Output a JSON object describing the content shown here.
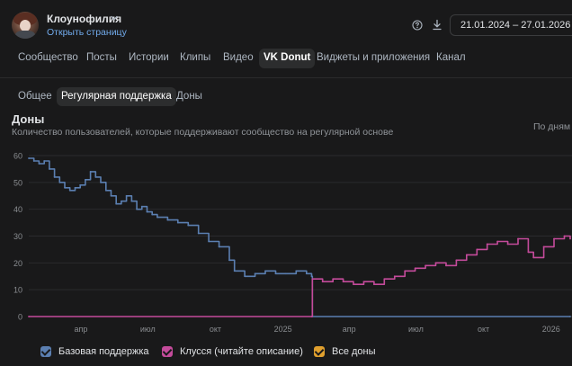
{
  "header": {
    "group_name": "Клоунофилия",
    "open_page_link": "Открыть страницу",
    "date_range": "21.01.2024 – 27.01.2026"
  },
  "tabs": [
    {
      "label": "Сообщество",
      "active": false
    },
    {
      "label": "Посты",
      "active": false
    },
    {
      "label": "Истории",
      "active": false
    },
    {
      "label": "Клипы",
      "active": false
    },
    {
      "label": "Видео",
      "active": false
    },
    {
      "label": "VK Donut",
      "active": true
    },
    {
      "label": "Виджеты и приложения",
      "active": false
    },
    {
      "label": "Канал",
      "active": false
    }
  ],
  "subtabs": [
    {
      "label": "Общее",
      "active": false
    },
    {
      "label": "Регулярная поддержка",
      "active": true
    },
    {
      "label": "Доны",
      "active": false
    }
  ],
  "chart_header": {
    "title": "Доны",
    "subtitle": "Количество пользователей, которые поддерживают сообщество на регулярной основе",
    "period": "По дням"
  },
  "colors": {
    "background": "#19191a",
    "series_base": "#5b7fb1",
    "series_klussa": "#c44b9b",
    "series_all": "#e0a02e",
    "link": "#71aaeb"
  },
  "chart_data": {
    "type": "line",
    "title": "Доны",
    "subtitle": "Количество пользователей, которые поддерживают сообщество на регулярной основе",
    "ylim": [
      0,
      60
    ],
    "y_ticks": [
      0,
      10,
      20,
      30,
      40,
      50,
      60
    ],
    "x_tick_labels": [
      "апр",
      "июл",
      "окт",
      "2025",
      "апр",
      "июл",
      "окт",
      "2026"
    ],
    "xlim": [
      "2024-01-21",
      "2026-01-27"
    ],
    "grid": true,
    "legend_position": "bottom",
    "series": [
      {
        "name": "Базовая поддержка",
        "color": "#5b7fb1",
        "points": [
          [
            "2024-01-21",
            59
          ],
          [
            "2024-01-28",
            58
          ],
          [
            "2024-02-04",
            57
          ],
          [
            "2024-02-11",
            58
          ],
          [
            "2024-02-18",
            55
          ],
          [
            "2024-02-25",
            52
          ],
          [
            "2024-03-03",
            50
          ],
          [
            "2024-03-10",
            48
          ],
          [
            "2024-03-17",
            47
          ],
          [
            "2024-03-24",
            48
          ],
          [
            "2024-03-31",
            49
          ],
          [
            "2024-04-07",
            51
          ],
          [
            "2024-04-14",
            54
          ],
          [
            "2024-04-21",
            52
          ],
          [
            "2024-04-28",
            50
          ],
          [
            "2024-05-05",
            47
          ],
          [
            "2024-05-12",
            45
          ],
          [
            "2024-05-19",
            42
          ],
          [
            "2024-05-26",
            43
          ],
          [
            "2024-06-02",
            45
          ],
          [
            "2024-06-09",
            43
          ],
          [
            "2024-06-16",
            40
          ],
          [
            "2024-06-23",
            41
          ],
          [
            "2024-06-30",
            39
          ],
          [
            "2024-07-07",
            38
          ],
          [
            "2024-07-14",
            37
          ],
          [
            "2024-07-28",
            36
          ],
          [
            "2024-08-11",
            35
          ],
          [
            "2024-08-25",
            34
          ],
          [
            "2024-09-08",
            31
          ],
          [
            "2024-09-22",
            28
          ],
          [
            "2024-10-06",
            26
          ],
          [
            "2024-10-20",
            21
          ],
          [
            "2024-10-27",
            17
          ],
          [
            "2024-11-10",
            15
          ],
          [
            "2024-11-24",
            16
          ],
          [
            "2024-12-08",
            17
          ],
          [
            "2024-12-22",
            16
          ],
          [
            "2025-01-05",
            16
          ],
          [
            "2025-01-19",
            17
          ],
          [
            "2025-02-02",
            16
          ],
          [
            "2025-02-09",
            15
          ],
          [
            "2025-02-10",
            0
          ],
          [
            "2026-01-27",
            0
          ]
        ]
      },
      {
        "name": "Клусся (читайте описание)",
        "color": "#c44b9b",
        "points": [
          [
            "2024-01-21",
            0
          ],
          [
            "2025-02-09",
            0
          ],
          [
            "2025-02-10",
            14
          ],
          [
            "2025-02-24",
            13
          ],
          [
            "2025-03-10",
            14
          ],
          [
            "2025-03-24",
            13
          ],
          [
            "2025-04-07",
            12
          ],
          [
            "2025-04-21",
            13
          ],
          [
            "2025-05-05",
            12
          ],
          [
            "2025-05-19",
            14
          ],
          [
            "2025-06-02",
            15
          ],
          [
            "2025-06-16",
            17
          ],
          [
            "2025-06-30",
            18
          ],
          [
            "2025-07-14",
            19
          ],
          [
            "2025-07-28",
            20
          ],
          [
            "2025-08-11",
            19
          ],
          [
            "2025-08-25",
            21
          ],
          [
            "2025-09-08",
            23
          ],
          [
            "2025-09-22",
            25
          ],
          [
            "2025-10-06",
            27
          ],
          [
            "2025-10-20",
            28
          ],
          [
            "2025-11-03",
            27
          ],
          [
            "2025-11-17",
            29
          ],
          [
            "2025-12-01",
            24
          ],
          [
            "2025-12-08",
            22
          ],
          [
            "2025-12-22",
            26
          ],
          [
            "2026-01-05",
            29
          ],
          [
            "2026-01-19",
            30
          ],
          [
            "2026-01-27",
            29
          ]
        ]
      },
      {
        "name": "Все доны",
        "color": "#e0a02e",
        "points": []
      }
    ]
  },
  "legend": {
    "items": [
      {
        "label": "Базовая поддержка",
        "color": "#5b7fb1"
      },
      {
        "label": "Клусся (читайте описание)",
        "color": "#c44b9b"
      },
      {
        "label": "Все доны",
        "color": "#e0a02e"
      }
    ]
  }
}
